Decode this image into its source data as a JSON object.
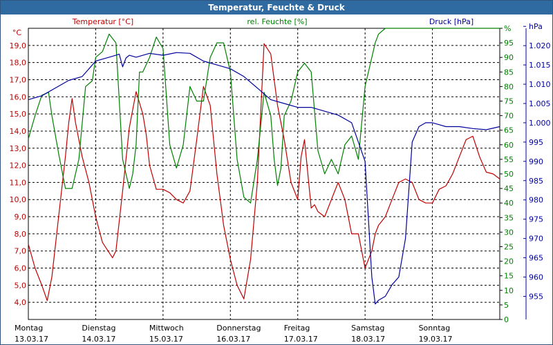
{
  "window": {
    "title": "Temperatur, Feuchte & Druck"
  },
  "colors": {
    "temperature": "#c00000",
    "humidity": "#008000",
    "pressure": "#00009c",
    "grid": "#000000",
    "titlebar": "#2f6aa0"
  },
  "chart_data": {
    "type": "line",
    "title": "Temperatur, Feuchte & Druck",
    "grid": true,
    "legend": "top",
    "x_categories": [
      {
        "day": "Montag",
        "date": "13.03.17"
      },
      {
        "day": "Dienstag",
        "date": "14.03.17"
      },
      {
        "day": "Mittwoch",
        "date": "15.03.17"
      },
      {
        "day": "Donnerstag",
        "date": "16.03.17"
      },
      {
        "day": "Freitag",
        "date": "17.03.17"
      },
      {
        "day": "Samstag",
        "date": "18.03.17"
      },
      {
        "day": "Sonntag",
        "date": "19.03.17"
      }
    ],
    "xlim": [
      0,
      7
    ],
    "axes": {
      "temperature": {
        "unit": "°C",
        "ylim": [
          3.0,
          20.0
        ],
        "ticks": [
          "4,0",
          "5,0",
          "6,0",
          "7,0",
          "8,0",
          "9,0",
          "10,0",
          "11,0",
          "12,0",
          "13,0",
          "14,0",
          "15,0",
          "16,0",
          "17,0",
          "18,0",
          "19,0"
        ],
        "tick_values": [
          4,
          5,
          6,
          7,
          8,
          9,
          10,
          11,
          12,
          13,
          14,
          15,
          16,
          17,
          18,
          19
        ]
      },
      "humidity": {
        "unit": "%",
        "ylim": [
          0,
          100
        ],
        "ticks": [
          "0",
          "5",
          "10",
          "15",
          "20",
          "25",
          "30",
          "35",
          "40",
          "45",
          "50",
          "55",
          "60",
          "65",
          "70",
          "75",
          "80",
          "85",
          "90",
          "95",
          "%"
        ],
        "tick_values": [
          0,
          5,
          10,
          15,
          20,
          25,
          30,
          35,
          40,
          45,
          50,
          55,
          60,
          65,
          70,
          75,
          80,
          85,
          90,
          95,
          100
        ]
      },
      "pressure": {
        "unit": "hPa",
        "ylim": [
          949.0,
          1024.5
        ],
        "ticks": [
          "955",
          "960",
          "965",
          "970",
          "975",
          "980",
          "985",
          "990",
          "995",
          "1.000",
          "1.005",
          "1.010",
          "1.015",
          "1.020",
          "hPa"
        ],
        "tick_values": [
          955,
          960,
          965,
          970,
          975,
          980,
          985,
          990,
          995,
          1000,
          1005,
          1010,
          1015,
          1020,
          1025
        ]
      }
    },
    "series": [
      {
        "name": "Temperatur [°C]",
        "axis": "temperature",
        "x": [
          0,
          0.1,
          0.2,
          0.28,
          0.35,
          0.45,
          0.55,
          0.6,
          0.65,
          0.7,
          0.8,
          0.9,
          1.0,
          1.1,
          1.2,
          1.25,
          1.3,
          1.4,
          1.5,
          1.6,
          1.7,
          1.75,
          1.8,
          1.9,
          2.0,
          2.1,
          2.2,
          2.3,
          2.4,
          2.5,
          2.6,
          2.7,
          2.8,
          2.9,
          3.0,
          3.1,
          3.2,
          3.3,
          3.4,
          3.5,
          3.6,
          3.7,
          3.8,
          3.9,
          4.0,
          4.05,
          4.1,
          4.2,
          4.25,
          4.3,
          4.4,
          4.5,
          4.6,
          4.7,
          4.8,
          4.9,
          5.0,
          5.1,
          5.15,
          5.2,
          5.3,
          5.4,
          5.5,
          5.6,
          5.7,
          5.8,
          5.9,
          6.0,
          6.1,
          6.2,
          6.3,
          6.4,
          6.5,
          6.6,
          6.7,
          6.8,
          6.9,
          7.0
        ],
        "values": [
          7.4,
          6.0,
          5.0,
          4.1,
          5.5,
          9.0,
          12.5,
          14.5,
          15.9,
          14.5,
          12.5,
          11.0,
          9.0,
          7.5,
          6.9,
          6.6,
          7.0,
          10.5,
          14.2,
          16.3,
          15.0,
          13.8,
          12.0,
          10.6,
          10.6,
          10.4,
          10.0,
          9.8,
          10.5,
          13.5,
          16.6,
          15.5,
          11.5,
          8.5,
          6.5,
          5.0,
          4.2,
          6.5,
          11.0,
          19.1,
          18.5,
          15.5,
          13.5,
          11.0,
          10.0,
          12.5,
          13.5,
          9.5,
          9.7,
          9.3,
          9.0,
          10.0,
          11.0,
          10.0,
          8.0,
          8.0,
          6.0,
          7.0,
          8.0,
          8.5,
          9.0,
          10.0,
          11.0,
          11.2,
          11.0,
          10.0,
          9.8,
          9.8,
          10.6,
          10.8,
          11.5,
          12.5,
          13.5,
          13.7,
          12.5,
          11.6,
          11.5,
          11.2
        ]
      },
      {
        "name": "rel. Feuchte [%]",
        "axis": "humidity",
        "x": [
          0,
          0.1,
          0.2,
          0.3,
          0.35,
          0.45,
          0.55,
          0.65,
          0.75,
          0.85,
          0.95,
          1.0,
          1.1,
          1.2,
          1.3,
          1.4,
          1.5,
          1.55,
          1.6,
          1.65,
          1.7,
          1.8,
          1.9,
          2.0,
          2.1,
          2.2,
          2.3,
          2.4,
          2.5,
          2.6,
          2.7,
          2.8,
          2.9,
          3.0,
          3.1,
          3.2,
          3.3,
          3.4,
          3.5,
          3.6,
          3.65,
          3.7,
          3.75,
          3.8,
          3.9,
          4.0,
          4.1,
          4.2,
          4.3,
          4.4,
          4.5,
          4.6,
          4.7,
          4.8,
          4.9,
          5.0,
          5.1,
          5.15,
          5.2,
          5.3,
          5.4,
          5.5,
          5.7,
          5.9,
          6.1,
          6.3,
          6.5,
          6.6,
          6.7,
          6.8,
          6.9,
          7.0
        ],
        "values": [
          62,
          70,
          77,
          78,
          70,
          57,
          45,
          45,
          55,
          80,
          82,
          90,
          92,
          98,
          95,
          55,
          45,
          50,
          60,
          85,
          85,
          90,
          97,
          93,
          60,
          52,
          60,
          80,
          75,
          75,
          90,
          95,
          95,
          85,
          55,
          42,
          40,
          55,
          78,
          70,
          55,
          46,
          52,
          70,
          75,
          85,
          88,
          85,
          58,
          50,
          55,
          50,
          60,
          63,
          55,
          80,
          90,
          95,
          98,
          100,
          100,
          100,
          100,
          100,
          100,
          100,
          100,
          100,
          100,
          100,
          100,
          100
        ]
      },
      {
        "name": "Druck [hPa]",
        "axis": "pressure",
        "x": [
          0,
          0.2,
          0.4,
          0.6,
          0.8,
          0.9,
          1.0,
          1.1,
          1.2,
          1.3,
          1.35,
          1.4,
          1.45,
          1.5,
          1.6,
          1.8,
          2.0,
          2.2,
          2.4,
          2.6,
          2.8,
          3.0,
          3.2,
          3.4,
          3.6,
          3.8,
          4.0,
          4.2,
          4.4,
          4.6,
          4.8,
          5.0,
          5.1,
          5.15,
          5.2,
          5.3,
          5.4,
          5.5,
          5.6,
          5.7,
          5.8,
          5.9,
          6.0,
          6.1,
          6.2,
          6.4,
          6.6,
          6.8,
          7.0
        ],
        "values": [
          1006,
          1007,
          1009,
          1011,
          1012,
          1014,
          1016,
          1016.5,
          1017,
          1017.5,
          1017.8,
          1014.5,
          1016.8,
          1017.5,
          1017,
          1018,
          1017.5,
          1018.2,
          1018,
          1016,
          1015,
          1014,
          1012,
          1009,
          1006,
          1005,
          1004,
          1004,
          1003,
          1002,
          1000,
          990,
          960,
          953,
          954,
          955,
          958,
          960,
          970,
          995,
          999,
          1000,
          1000,
          999.5,
          999,
          999,
          998.5,
          998.2,
          999
        ]
      }
    ]
  }
}
